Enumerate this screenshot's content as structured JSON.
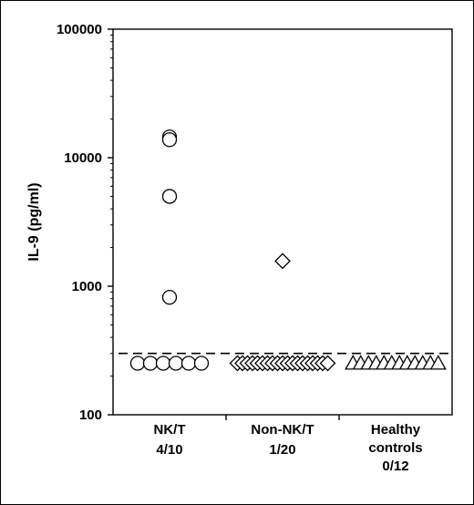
{
  "chart_data": {
    "type": "scatter",
    "ylabel": "IL-9 (pg/ml)",
    "yscale": "log",
    "ylim": [
      100,
      100000
    ],
    "yticks": [
      "100",
      "1000",
      "10000",
      "100000"
    ],
    "threshold": 300,
    "groups": [
      {
        "label": "NK/T",
        "ratio": "4/10",
        "marker": "circle",
        "values": [
          14500,
          13800,
          5000,
          820,
          260,
          260,
          260,
          260,
          260,
          260
        ]
      },
      {
        "label": "Non-NK/T",
        "ratio": "1/20",
        "marker": "diamond",
        "values": [
          1570,
          260,
          260,
          260,
          260,
          260,
          260,
          260,
          260,
          260,
          260,
          260,
          260,
          260,
          260,
          260,
          260,
          260,
          260,
          260
        ]
      },
      {
        "label_lines": [
          "Healthy",
          "controls"
        ],
        "ratio": "0/12",
        "marker": "triangle",
        "values": [
          260,
          260,
          260,
          260,
          260,
          260,
          260,
          260,
          260,
          260,
          260,
          260
        ]
      }
    ]
  }
}
